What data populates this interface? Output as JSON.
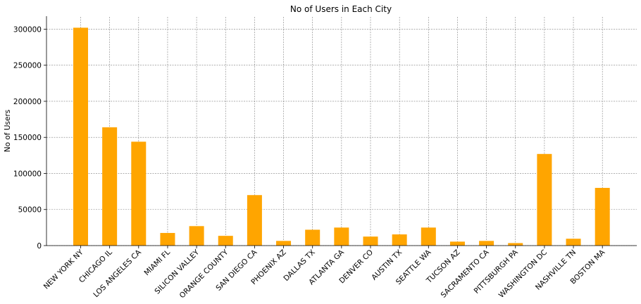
{
  "chart_data": {
    "type": "bar",
    "title": "No of Users in Each City",
    "xlabel": "",
    "ylabel": "No of Users",
    "categories": [
      "NEW YORK NY",
      "CHICAGO IL",
      "LOS ANGELES CA",
      "MIAMI FL",
      "SILICON VALLEY",
      "ORANGE COUNTY",
      "SAN DIEGO CA",
      "PHOENIX AZ",
      "DALLAS TX",
      "ATLANTA GA",
      "DENVER CO",
      "AUSTIN TX",
      "SEATTLE WA",
      "TUCSON AZ",
      "SACRAMENTO CA",
      "PITTSBURGH PA",
      "WASHINGTON DC",
      "NASHVILLE TN",
      "BOSTON MA"
    ],
    "values": [
      302000,
      164000,
      144000,
      17500,
      27000,
      13500,
      70000,
      6500,
      22000,
      25000,
      12500,
      15500,
      25000,
      5500,
      6500,
      3500,
      127000,
      9500,
      80000
    ],
    "ylim": [
      0,
      317000
    ],
    "yticks": [
      0,
      50000,
      100000,
      150000,
      200000,
      250000,
      300000
    ],
    "grid": true,
    "bar_color": "#FFA500",
    "grid_color": "#808080"
  }
}
